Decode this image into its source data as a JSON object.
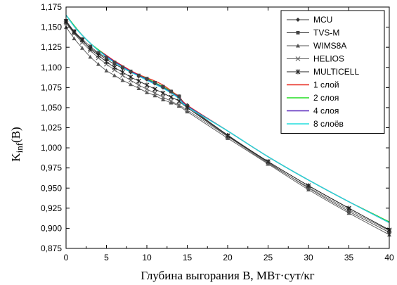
{
  "chart_data": {
    "type": "line",
    "title": "",
    "xlabel": "Глубина выгорания B, МВт·сут/кг",
    "ylabel_main": "K",
    "ylabel_sub": "inf",
    "ylabel_tail": "(B)",
    "xlim": [
      0,
      40
    ],
    "ylim": [
      0.875,
      1.175
    ],
    "x_ticks": [
      0,
      5,
      10,
      15,
      20,
      25,
      30,
      35,
      40
    ],
    "y_ticks": [
      0.875,
      0.9,
      0.925,
      0.95,
      0.975,
      1.0,
      1.025,
      1.05,
      1.075,
      1.1,
      1.125,
      1.15,
      1.175
    ],
    "x_tick_labels": [
      "0",
      "5",
      "10",
      "15",
      "20",
      "25",
      "30",
      "35",
      "40"
    ],
    "y_tick_labels": [
      "0,875",
      "0,900",
      "0,925",
      "0,950",
      "0,975",
      "1,000",
      "1,025",
      "1,050",
      "1,075",
      "1,100",
      "1,125",
      "1,150",
      "1,175"
    ],
    "grid": false,
    "legend_position": "top-right",
    "series": [
      {
        "name": "MCU",
        "color": "#333333",
        "marker": "diamond",
        "x": [
          0,
          1,
          2,
          3,
          4,
          5,
          6,
          7,
          8,
          9,
          10,
          11,
          12,
          13,
          14,
          15,
          20,
          25,
          30,
          35,
          40
        ],
        "y": [
          1.156,
          1.143,
          1.133,
          1.124,
          1.117,
          1.11,
          1.104,
          1.099,
          1.094,
          1.089,
          1.085,
          1.08,
          1.075,
          1.07,
          1.064,
          1.053,
          1.016,
          0.983,
          0.953,
          0.925,
          0.898
        ]
      },
      {
        "name": "TVS-M",
        "color": "#444444",
        "marker": "square",
        "x": [
          0,
          1,
          2,
          3,
          4,
          5,
          6,
          7,
          8,
          9,
          10,
          11,
          12,
          13,
          14,
          15,
          20,
          25,
          30,
          35,
          40
        ],
        "y": [
          1.158,
          1.145,
          1.135,
          1.126,
          1.118,
          1.112,
          1.106,
          1.1,
          1.095,
          1.09,
          1.086,
          1.081,
          1.076,
          1.07,
          1.064,
          1.052,
          1.015,
          0.982,
          0.95,
          0.921,
          0.895
        ]
      },
      {
        "name": "WIMS8A",
        "color": "#555555",
        "marker": "triangle",
        "x": [
          0,
          1,
          2,
          3,
          4,
          5,
          6,
          7,
          8,
          9,
          10,
          11,
          12,
          13,
          14,
          15,
          20,
          25,
          30,
          35,
          40
        ],
        "y": [
          1.15,
          1.136,
          1.124,
          1.113,
          1.104,
          1.096,
          1.09,
          1.084,
          1.079,
          1.074,
          1.069,
          1.065,
          1.06,
          1.056,
          1.052,
          1.045,
          1.012,
          0.98,
          0.948,
          0.919,
          0.892
        ]
      },
      {
        "name": "HELIOS",
        "color": "#666666",
        "marker": "x",
        "x": [
          0,
          1,
          2,
          3,
          4,
          5,
          6,
          7,
          8,
          9,
          10,
          11,
          12,
          13,
          14,
          15,
          20,
          25,
          30,
          35,
          40
        ],
        "y": [
          1.155,
          1.142,
          1.131,
          1.121,
          1.112,
          1.104,
          1.097,
          1.09,
          1.084,
          1.078,
          1.073,
          1.068,
          1.063,
          1.058,
          1.053,
          1.047,
          1.014,
          0.981,
          0.951,
          0.923,
          0.897
        ]
      },
      {
        "name": "MULTICELL",
        "color": "#222222",
        "marker": "star",
        "x": [
          0,
          1,
          2,
          3,
          4,
          5,
          6,
          7,
          8,
          9,
          10,
          11,
          12,
          13,
          14,
          15,
          20,
          25,
          30,
          35,
          40
        ],
        "y": [
          1.157,
          1.144,
          1.134,
          1.123,
          1.115,
          1.107,
          1.1,
          1.094,
          1.088,
          1.083,
          1.078,
          1.073,
          1.068,
          1.063,
          1.058,
          1.05,
          1.015,
          0.983,
          0.953,
          0.925,
          0.898
        ]
      },
      {
        "name": "1 слой",
        "color": "#e8281e",
        "marker": "none",
        "x": [
          0,
          1,
          2,
          3,
          4,
          5,
          6,
          7,
          8,
          9,
          10,
          11,
          12,
          13,
          14,
          15,
          20,
          25,
          30,
          35,
          40
        ],
        "y": [
          1.165,
          1.152,
          1.14,
          1.13,
          1.122,
          1.115,
          1.108,
          1.102,
          1.096,
          1.091,
          1.087,
          1.083,
          1.078,
          1.071,
          1.063,
          1.053,
          1.021,
          0.989,
          0.96,
          0.933,
          0.908
        ]
      },
      {
        "name": "2 слоя",
        "color": "#22dd22",
        "marker": "none",
        "x": [
          0,
          1,
          2,
          3,
          4,
          5,
          6,
          7,
          8,
          9,
          10,
          11,
          12,
          13,
          14,
          15,
          20,
          25,
          30,
          35,
          40
        ],
        "y": [
          1.165,
          1.152,
          1.14,
          1.13,
          1.122,
          1.114,
          1.107,
          1.101,
          1.095,
          1.09,
          1.086,
          1.081,
          1.076,
          1.07,
          1.062,
          1.052,
          1.021,
          0.989,
          0.96,
          0.933,
          0.908
        ]
      },
      {
        "name": "4 слоя",
        "color": "#5522bb",
        "marker": "none",
        "x": [
          0,
          1,
          2,
          3,
          4,
          5,
          6,
          7,
          8,
          9,
          10,
          11,
          12,
          13,
          14,
          15,
          20,
          25,
          30,
          35,
          40
        ],
        "y": [
          1.165,
          1.151,
          1.14,
          1.13,
          1.121,
          1.114,
          1.107,
          1.101,
          1.095,
          1.09,
          1.085,
          1.08,
          1.075,
          1.069,
          1.062,
          1.052,
          1.021,
          0.989,
          0.96,
          0.933,
          0.907
        ]
      },
      {
        "name": "8 слоёв",
        "color": "#22dddd",
        "marker": "none",
        "x": [
          0,
          1,
          2,
          3,
          4,
          5,
          6,
          7,
          8,
          9,
          10,
          11,
          12,
          13,
          14,
          15,
          20,
          25,
          30,
          35,
          40
        ],
        "y": [
          1.165,
          1.151,
          1.14,
          1.13,
          1.121,
          1.113,
          1.106,
          1.1,
          1.094,
          1.089,
          1.084,
          1.079,
          1.074,
          1.068,
          1.061,
          1.051,
          1.021,
          0.989,
          0.96,
          0.933,
          0.907
        ]
      }
    ]
  }
}
